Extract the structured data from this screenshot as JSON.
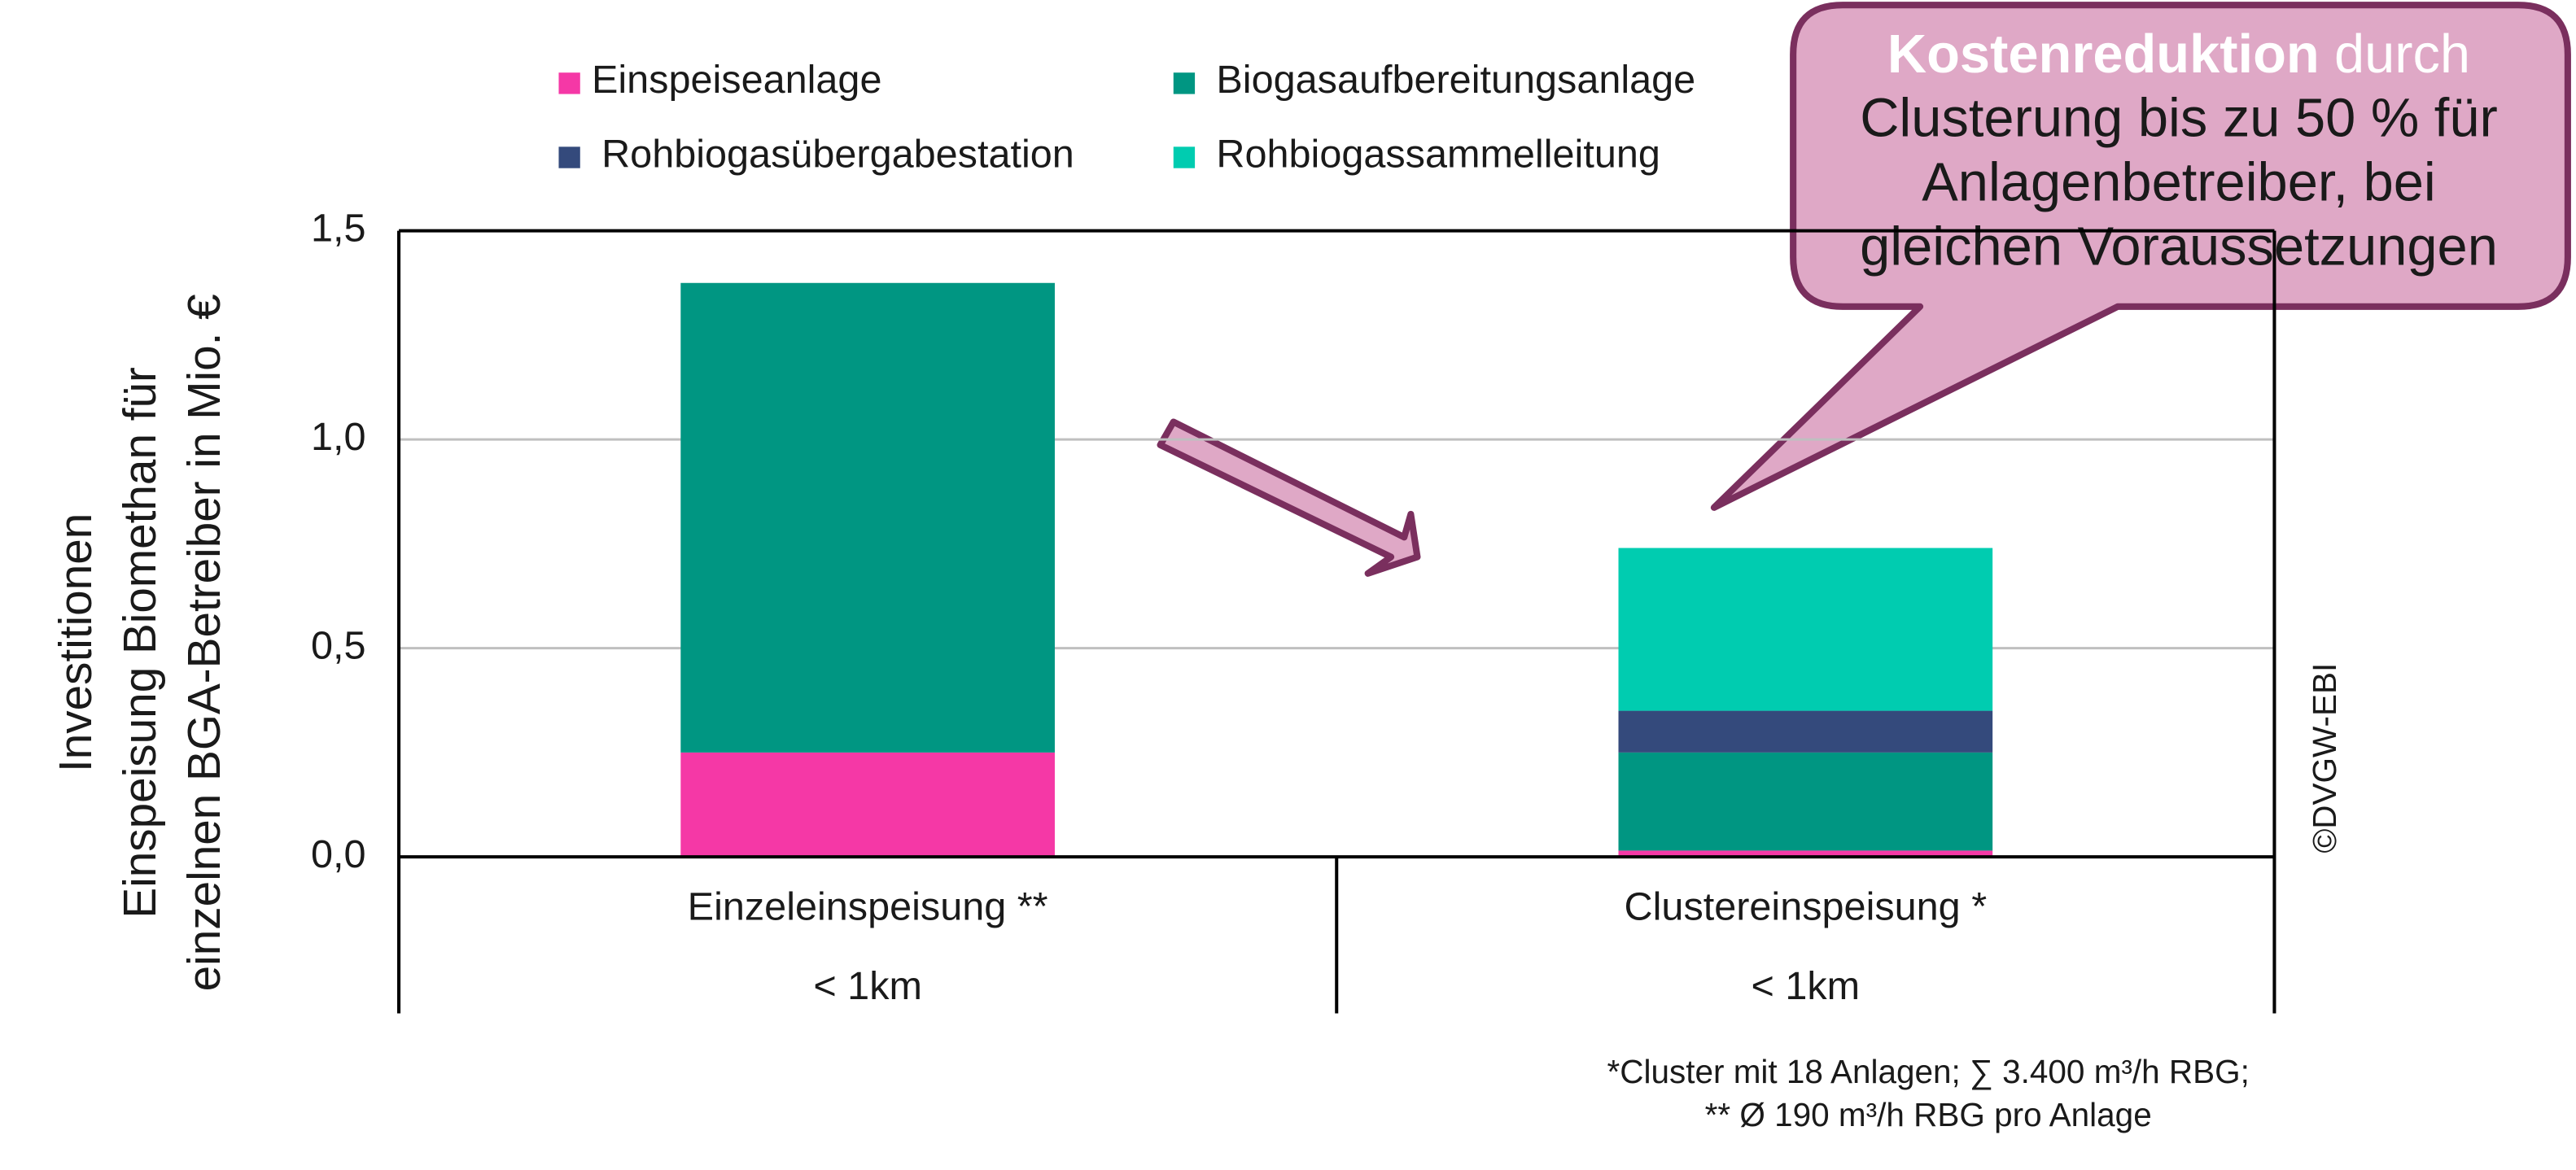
{
  "chart_data": {
    "type": "stacked_bar",
    "categories": [
      "Einzeleinspeisung **",
      "Clustereinspeisung *"
    ],
    "x_sublabels": [
      "< 1km",
      "< 1km"
    ],
    "series": [
      {
        "name": "Einspeiseanlage",
        "color": "#f538a6",
        "values": [
          0.25,
          0.015
        ]
      },
      {
        "name": "Biogasaufbereitungsanlage",
        "color": "#009682",
        "values": [
          1.125,
          0.235
        ]
      },
      {
        "name": "Rohbiogasübergabestation",
        "color": "#344a7c",
        "values": [
          0,
          0.1
        ]
      },
      {
        "name": "Rohbiogassammelleitung",
        "color": "#00ccb0",
        "values": [
          0,
          0.39
        ]
      }
    ],
    "ylim": [
      0,
      1.5
    ],
    "yticks": [
      {
        "value": 0,
        "label": "0,0"
      },
      {
        "value": 0.5,
        "label": "0,5"
      },
      {
        "value": 1,
        "label": "1,0"
      },
      {
        "value": 1.5,
        "label": "1,5"
      }
    ],
    "grid": true,
    "y_label_lines": [
      "Investitionen",
      "Einspeisung Biomethan für",
      "einzelnen BGA-Betreiber in Mio. €"
    ],
    "annotation_bold": "Kostenreduktion",
    "annotation_lines": [
      "durch",
      "Clusterung bis zu 50 % für",
      "Anlagenbetreiber, bei",
      "gleichen Voraussetzungen"
    ],
    "footnotes": [
      "*Cluster mit 18 Anlagen; ∑ 3.400 m³/h RBG;",
      "** Ø 190 m³/h RBG pro Anlage"
    ],
    "copyright": "©DVGW-EBI"
  }
}
